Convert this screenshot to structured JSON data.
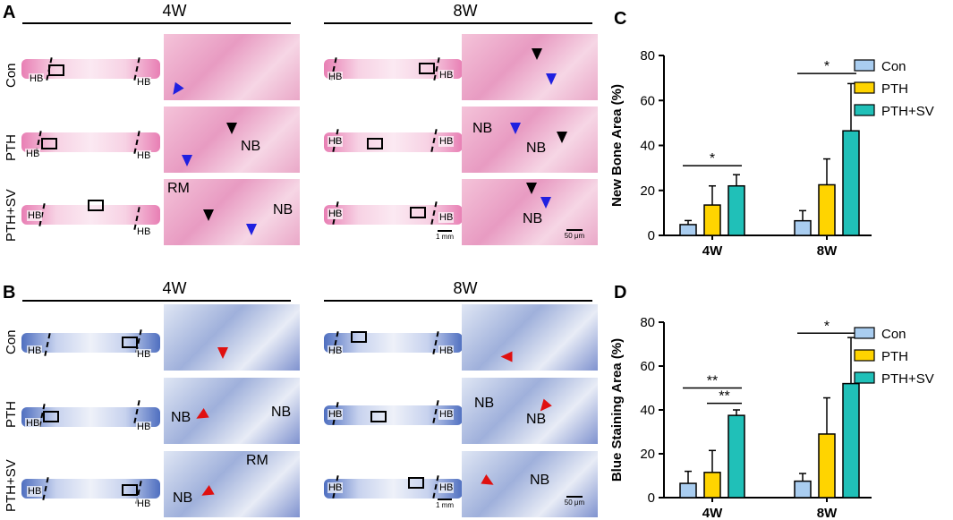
{
  "panels": {
    "A": "A",
    "B": "B",
    "C": "C",
    "D": "D"
  },
  "time_points": {
    "w4": "4W",
    "w8": "8W"
  },
  "groups": [
    "Con",
    "PTH",
    "PTH+SV"
  ],
  "histology_labels": {
    "hb": "HB",
    "nb": "NB",
    "rm": "RM",
    "scale_1mm": "1 mm",
    "scale_50um": "50 μm"
  },
  "colors": {
    "con": "#a9cdf0",
    "pth": "#ffd400",
    "pth_sv": "#20c0b8",
    "arrow_black": "#000000",
    "arrow_blue": "#2020e0",
    "arrow_red": "#e01010"
  },
  "chart_data": [
    {
      "type": "bar",
      "panel": "C",
      "title": "",
      "xlabel": "",
      "ylabel": "New Bone Area (%)",
      "categories": [
        "4W",
        "8W"
      ],
      "ylim": [
        0,
        80
      ],
      "yticks": [
        0,
        20,
        40,
        60,
        80
      ],
      "series": [
        {
          "name": "Con",
          "values": [
            4.8,
            6.5
          ],
          "errors": [
            1.8,
            4.5
          ]
        },
        {
          "name": "PTH",
          "values": [
            13.5,
            22.5
          ],
          "errors": [
            8.5,
            11.5
          ]
        },
        {
          "name": "PTH+SV",
          "values": [
            22.0,
            46.5
          ],
          "errors": [
            5.0,
            21.0
          ]
        }
      ],
      "significance": [
        {
          "category": "4W",
          "from": "Con",
          "to": "PTH+SV",
          "label": "*",
          "y": 31
        },
        {
          "category": "8W",
          "from": "Con",
          "to": "PTH+SV",
          "label": "*",
          "y": 72
        }
      ]
    },
    {
      "type": "bar",
      "panel": "D",
      "title": "",
      "xlabel": "",
      "ylabel": "Blue Staining Area (%)",
      "categories": [
        "4W",
        "8W"
      ],
      "ylim": [
        0,
        80
      ],
      "yticks": [
        0,
        20,
        40,
        60,
        80
      ],
      "series": [
        {
          "name": "Con",
          "values": [
            6.5,
            7.5
          ],
          "errors": [
            5.5,
            3.5
          ]
        },
        {
          "name": "PTH",
          "values": [
            11.5,
            29.0
          ],
          "errors": [
            10.0,
            16.5
          ]
        },
        {
          "name": "PTH+SV",
          "values": [
            37.5,
            52.0
          ],
          "errors": [
            2.5,
            21.0
          ]
        }
      ],
      "significance": [
        {
          "category": "4W",
          "from": "Con",
          "to": "PTH+SV",
          "label": "**",
          "y": 50
        },
        {
          "category": "4W",
          "from": "PTH",
          "to": "PTH+SV",
          "label": "**",
          "y": 43
        },
        {
          "category": "8W",
          "from": "Con",
          "to": "PTH+SV",
          "label": "*",
          "y": 75
        }
      ]
    }
  ]
}
